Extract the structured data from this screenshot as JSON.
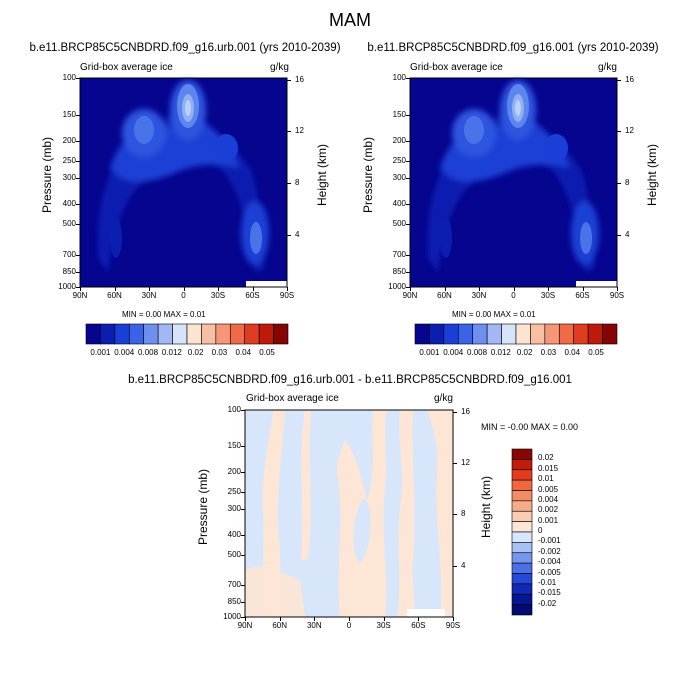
{
  "figure": {
    "title": "MAM"
  },
  "panels": [
    {
      "title": "b.e11.BRCP85C5CNBDRD.f09_g16.urb.001 (yrs 2010-2039)",
      "left_label": "Grid-box average ice",
      "right_label": "g/kg",
      "stats": "MIN =   0.00   MAX =   0.01",
      "y_axis_label": "Pressure (mb)",
      "y2_axis_label": "Height (km)"
    },
    {
      "title": "b.e11.BRCP85C5CNBDRD.f09_g16.001 (yrs 2010-2039)",
      "left_label": "Grid-box average ice",
      "right_label": "g/kg",
      "stats": "MIN =   0.00   MAX =   0.01",
      "y_axis_label": "Pressure (mb)",
      "y2_axis_label": "Height (km)"
    },
    {
      "title": "b.e11.BRCP85C5CNBDRD.f09_g16.urb.001 - b.e11.BRCP85C5CNBDRD.f09_g16.001",
      "left_label": "Grid-box average ice",
      "right_label": "g/kg",
      "stats": "MIN =  -0.00   MAX =   0.00",
      "y_axis_label": "Pressure (mb)",
      "y2_axis_label": "Height (km)"
    }
  ],
  "axes": {
    "x_ticks": [
      "90N",
      "60N",
      "30N",
      "0",
      "30S",
      "60S",
      "90S"
    ],
    "pressure_ticks": [
      "100",
      "150",
      "200",
      "250",
      "300",
      "400",
      "500",
      "700",
      "850",
      "1000"
    ],
    "height_ticks": [
      "16",
      "12",
      "8",
      "4"
    ]
  },
  "colorbars": {
    "abs_labels": [
      "0.001",
      "0.004",
      "0.008",
      "0.012",
      "0.02",
      "0.03",
      "0.04",
      "0.05"
    ],
    "abs_colors": [
      "#05058f",
      "#0a1fb0",
      "#1a3fd6",
      "#3b63e8",
      "#6d8ff0",
      "#a1b8f5",
      "#d6e4f9",
      "#fce4d2",
      "#f7c0a2",
      "#f59676",
      "#f06a48",
      "#e03c20",
      "#bd1a0a",
      "#850504"
    ],
    "diff_labels": [
      "0.02",
      "0.015",
      "0.01",
      "0.005",
      "0.004",
      "0.002",
      "0.001",
      "0",
      "-0.001",
      "-0.002",
      "-0.004",
      "-0.005",
      "-0.01",
      "-0.015",
      "-0.02"
    ],
    "diff_colors": [
      "#8a0606",
      "#c01b0b",
      "#e33b1c",
      "#f2663f",
      "#f38b64",
      "#f6ac8b",
      "#f9cdb3",
      "#fde6d5",
      "#d8e6fb",
      "#a9c0f4",
      "#7595ee",
      "#4a70e6",
      "#2448d8",
      "#1129b4",
      "#061591",
      "#030a72"
    ]
  },
  "chart_data": [
    {
      "type": "heatmap",
      "title": "b.e11.BRCP85C5CNBDRD.f09_g16.urb.001 (yrs 2010-2039)",
      "xlabel": "",
      "ylabel": "Pressure (mb)",
      "y2label": "Height (km)",
      "xlim": [
        "90N",
        "90S"
      ],
      "ylim": [
        1000,
        100
      ],
      "units": "g/kg",
      "min": 0.0,
      "max": 0.01,
      "features": [
        {
          "lat": 5,
          "pressure": 220,
          "value": 0.012
        },
        {
          "lat": 42,
          "pressure": 300,
          "value": 0.008
        },
        {
          "lat": -63,
          "pressure": 790,
          "value": 0.008
        },
        {
          "lat": -42,
          "pressure": 400,
          "value": 0.004
        },
        {
          "lat": 75,
          "pressure": 800,
          "value": 0.002
        }
      ]
    },
    {
      "type": "heatmap",
      "title": "b.e11.BRCP85C5CNBDRD.f09_g16.001 (yrs 2010-2039)",
      "xlabel": "",
      "ylabel": "Pressure (mb)",
      "y2label": "Height (km)",
      "xlim": [
        "90N",
        "90S"
      ],
      "ylim": [
        1000,
        100
      ],
      "units": "g/kg",
      "min": 0.0,
      "max": 0.01,
      "features": [
        {
          "lat": 5,
          "pressure": 220,
          "value": 0.012
        },
        {
          "lat": 42,
          "pressure": 300,
          "value": 0.008
        },
        {
          "lat": -63,
          "pressure": 790,
          "value": 0.008
        },
        {
          "lat": -42,
          "pressure": 400,
          "value": 0.004
        },
        {
          "lat": 75,
          "pressure": 800,
          "value": 0.002
        }
      ]
    },
    {
      "type": "heatmap",
      "title": "b.e11.BRCP85C5CNBDRD.f09_g16.urb.001 - b.e11.BRCP85C5CNBDRD.f09_g16.001",
      "xlabel": "",
      "ylabel": "Pressure (mb)",
      "y2label": "Height (km)",
      "xlim": [
        "90N",
        "90S"
      ],
      "ylim": [
        1000,
        100
      ],
      "units": "g/kg",
      "min": -0.0,
      "max": 0.0,
      "bands": [
        {
          "lat_from": 90,
          "lat_to": 70,
          "value": -0.001
        },
        {
          "lat_from": 70,
          "lat_to": 55,
          "value": 0.001
        },
        {
          "lat_from": 55,
          "lat_to": 35,
          "value": -0.001
        },
        {
          "lat_from": 35,
          "lat_to": 10,
          "value": 0.001
        },
        {
          "lat_from": 10,
          "lat_to": -20,
          "value": -0.001
        },
        {
          "lat_from": -20,
          "lat_to": -60,
          "value": 0.001
        },
        {
          "lat_from": -60,
          "lat_to": -75,
          "value": -0.001
        },
        {
          "lat_from": -75,
          "lat_to": -90,
          "value": 0.001
        }
      ]
    }
  ]
}
